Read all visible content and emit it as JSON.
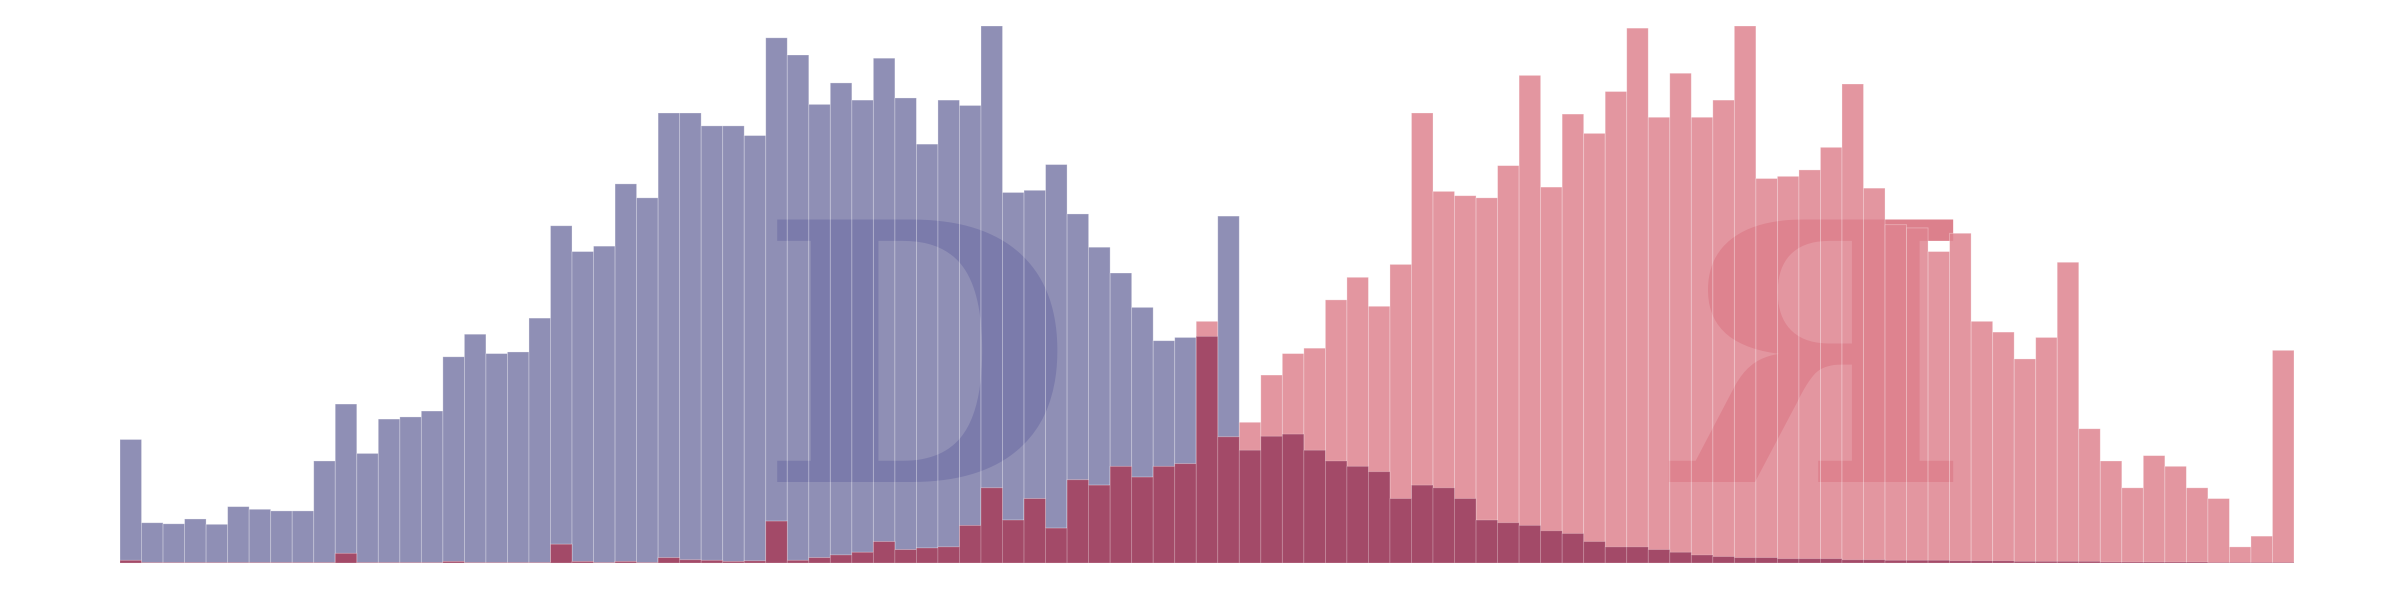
{
  "chart_data": {
    "type": "bar",
    "title": "",
    "xlabel": "",
    "ylabel": "",
    "ylim": [
      0,
      1
    ],
    "grid": false,
    "legend": "none",
    "x_count": 101,
    "background_letters": [
      {
        "text": "D",
        "color": "#6666b0",
        "x_index": 36.5
      },
      {
        "text": "R",
        "color": "#d66a78",
        "x_index": 78.5,
        "mirrored": true
      }
    ],
    "series": [
      {
        "color": "#7b7ba8",
        "values": [
          0.23,
          0.075,
          0.073,
          0.082,
          0.072,
          0.105,
          0.1,
          0.097,
          0.097,
          0.19,
          0.296,
          0.204,
          0.268,
          0.272,
          0.283,
          0.384,
          0.426,
          0.39,
          0.393,
          0.456,
          0.628,
          0.58,
          0.59,
          0.706,
          0.68,
          0.838,
          0.838,
          0.814,
          0.814,
          0.796,
          0.978,
          0.946,
          0.854,
          0.894,
          0.862,
          0.94,
          0.866,
          0.78,
          0.862,
          0.852,
          1.0,
          0.69,
          0.694,
          0.742,
          0.65,
          0.588,
          0.54,
          0.476,
          0.414,
          0.42,
          0.422,
          0.646,
          0.21,
          0.236,
          0.24,
          0.21,
          0.19,
          0.18,
          0.17,
          0.12,
          0.145,
          0.14,
          0.12,
          0.08,
          0.075,
          0.07,
          0.06,
          0.055,
          0.04,
          0.03,
          0.03,
          0.025,
          0.02,
          0.015,
          0.012,
          0.01,
          0.01,
          0.008,
          0.008,
          0.008,
          0.006,
          0.006,
          0.005,
          0.005,
          0.005,
          0.004,
          0.004,
          0.004,
          0.003,
          0.003,
          0.003,
          0.003,
          0.002,
          0.002,
          0.002,
          0.002,
          0.002,
          0.001,
          0.001,
          0.001,
          0.001
        ]
      },
      {
        "color": "#de848f",
        "values": [
          0.005,
          0.001,
          0.001,
          0.001,
          0.001,
          0.001,
          0.001,
          0.001,
          0.001,
          0.001,
          0.018,
          0.001,
          0.001,
          0.001,
          0.001,
          0.003,
          0.001,
          0.001,
          0.001,
          0.001,
          0.035,
          0.003,
          0.001,
          0.003,
          0.001,
          0.01,
          0.006,
          0.005,
          0.003,
          0.004,
          0.078,
          0.005,
          0.01,
          0.015,
          0.02,
          0.04,
          0.025,
          0.028,
          0.03,
          0.07,
          0.14,
          0.08,
          0.12,
          0.065,
          0.155,
          0.145,
          0.18,
          0.16,
          0.18,
          0.185,
          0.45,
          0.235,
          0.262,
          0.35,
          0.39,
          0.4,
          0.49,
          0.532,
          0.478,
          0.556,
          0.838,
          0.692,
          0.684,
          0.68,
          0.74,
          0.908,
          0.7,
          0.836,
          0.8,
          0.878,
          0.996,
          0.83,
          0.912,
          0.83,
          0.862,
          1.0,
          0.716,
          0.72,
          0.732,
          0.774,
          0.892,
          0.698,
          0.63,
          0.624,
          0.58,
          0.614,
          0.45,
          0.43,
          0.38,
          0.42,
          0.56,
          0.25,
          0.19,
          0.14,
          0.2,
          0.18,
          0.14,
          0.12,
          0.03,
          0.05,
          0.396
        ]
      }
    ]
  }
}
